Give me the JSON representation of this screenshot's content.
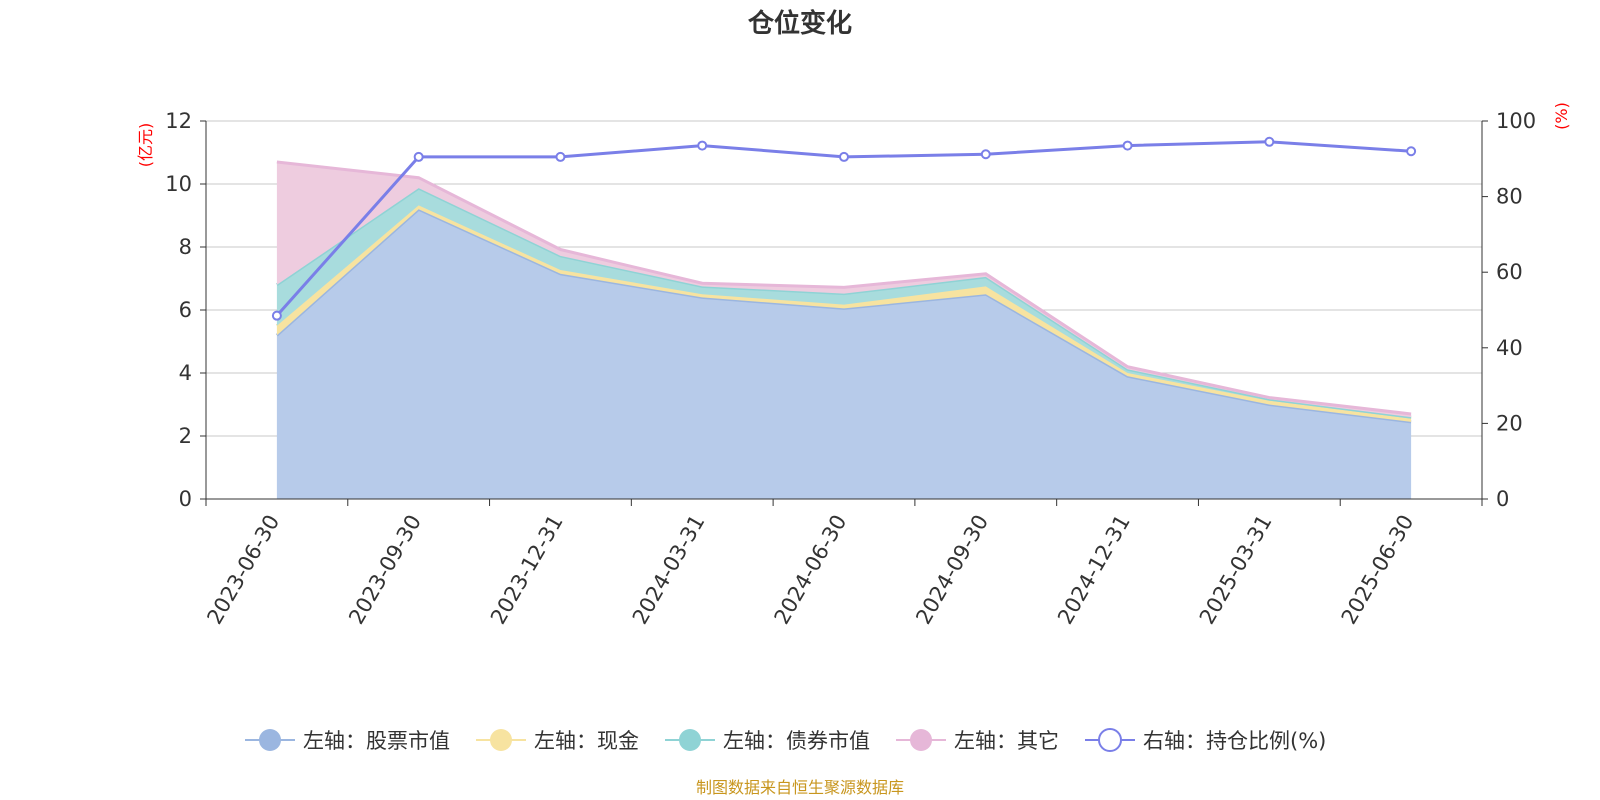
{
  "chart_data": {
    "type": "area",
    "title": "仓位变化",
    "categories": [
      "2023-06-30",
      "2023-09-30",
      "2023-12-31",
      "2024-03-31",
      "2024-06-30",
      "2024-09-30",
      "2024-12-31",
      "2025-03-31",
      "2025-06-30"
    ],
    "y_left": {
      "unit": "(亿元)",
      "range": [
        0,
        12
      ],
      "ticks": [
        "0",
        "2",
        "4",
        "6",
        "8",
        "10",
        "12"
      ]
    },
    "y_right": {
      "unit": "(%)",
      "range": [
        0,
        100
      ],
      "ticks": [
        "0",
        "20",
        "40",
        "60",
        "80",
        "100"
      ]
    },
    "stacked_series": [
      {
        "name": "左轴：股票市值",
        "color": "#9bb6e0",
        "fill": "#b7cbea",
        "values": [
          5.2,
          9.2,
          7.15,
          6.4,
          6.05,
          6.5,
          3.9,
          3.0,
          2.45
        ]
      },
      {
        "name": "左轴：现金",
        "color": "#f7e3a0",
        "fill": "#f7e3a0",
        "values": [
          0.3,
          0.12,
          0.12,
          0.1,
          0.12,
          0.25,
          0.1,
          0.12,
          0.1
        ]
      },
      {
        "name": "左轴：债券市值",
        "color": "#8fd3d5",
        "fill": "#a8dcdd",
        "values": [
          1.3,
          0.55,
          0.45,
          0.25,
          0.35,
          0.3,
          0.12,
          0.05,
          0.05
        ]
      },
      {
        "name": "左轴：其它",
        "color": "#e6b7d8",
        "fill": "#eeccdf",
        "values": [
          3.9,
          0.33,
          0.2,
          0.1,
          0.2,
          0.1,
          0.08,
          0.05,
          0.1
        ]
      }
    ],
    "line_series": {
      "name": "右轴：持仓比例(%)",
      "color": "#7a7fe8",
      "values": [
        48.5,
        90.5,
        90.5,
        93.5,
        90.5,
        91.2,
        93.5,
        94.5,
        92
      ]
    },
    "grid": true,
    "legend_position": "bottom"
  },
  "source_note": "制图数据来自恒生聚源数据库"
}
